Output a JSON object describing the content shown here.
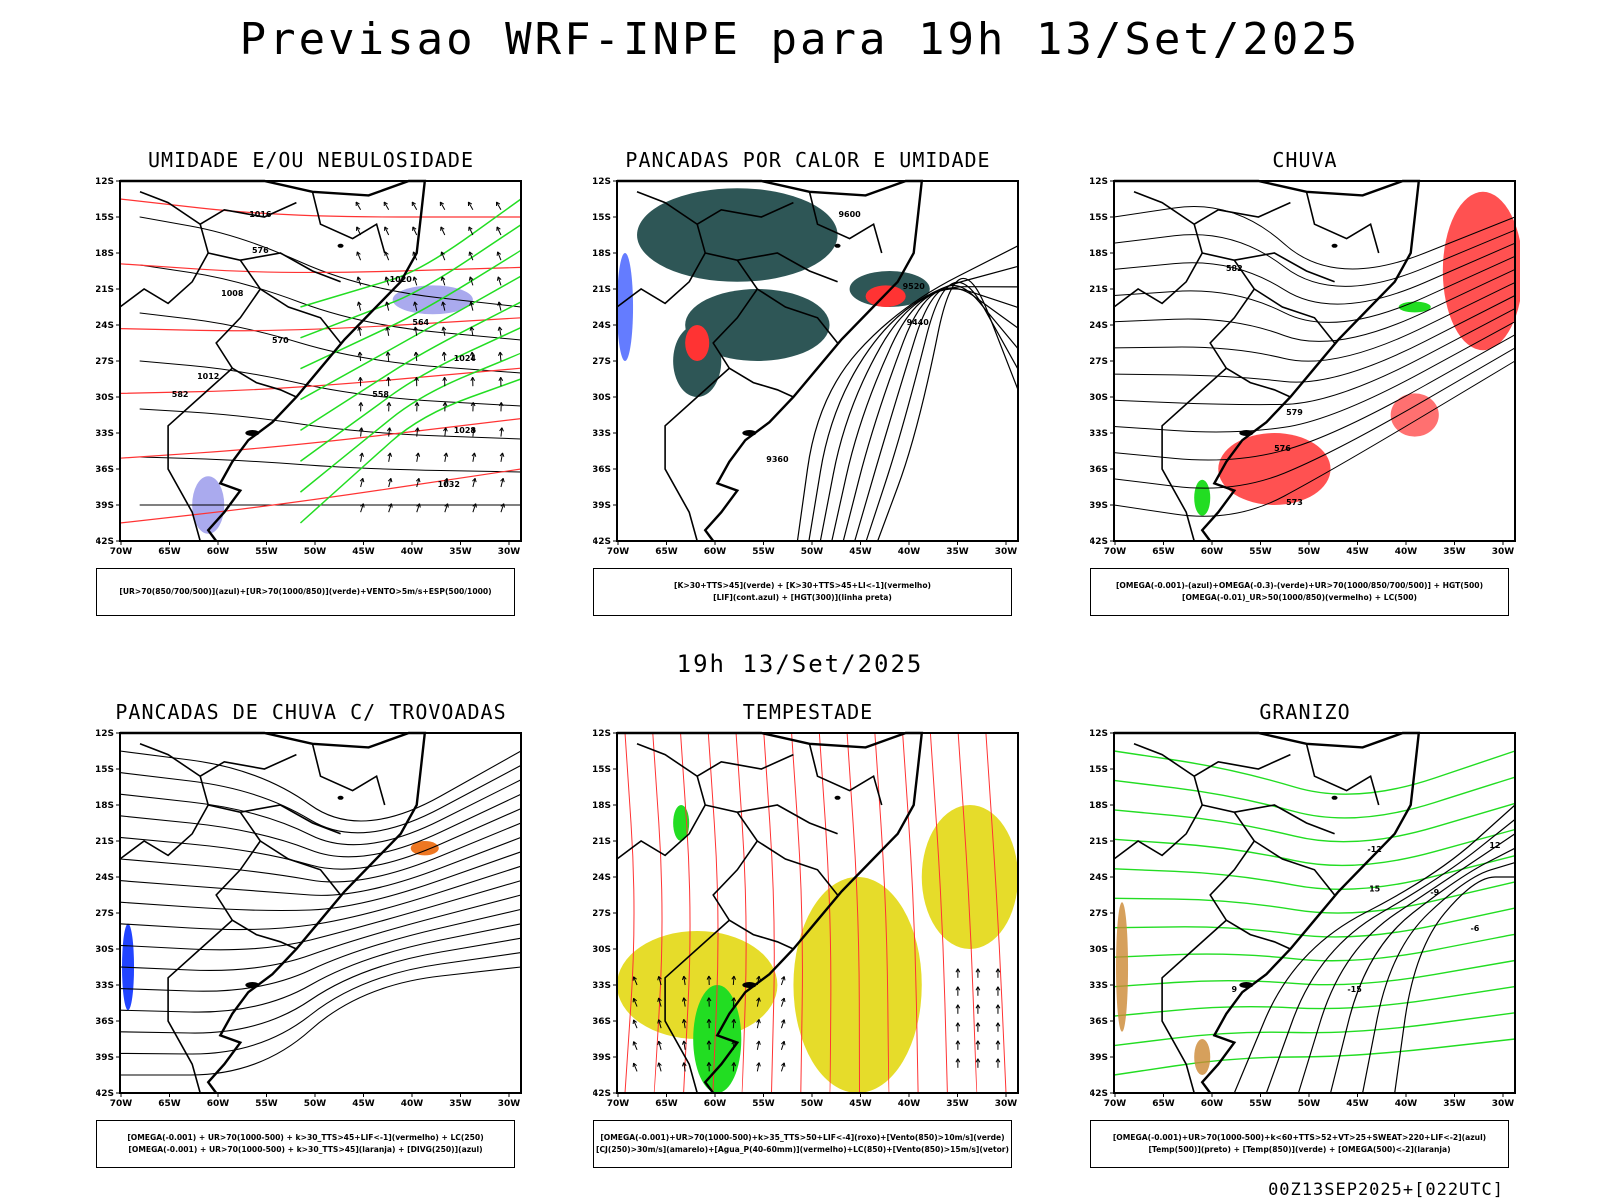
{
  "header": {
    "title": "Previsao WRF-INPE  para 19h 13/Set/2025"
  },
  "middle": {
    "title": "19h 13/Set/2025"
  },
  "footer": {
    "stamp": "00Z13SEP2025+[022UTC]"
  },
  "axes": {
    "lat_labels": [
      "12S",
      "15S",
      "18S",
      "21S",
      "24S",
      "27S",
      "30S",
      "33S",
      "36S",
      "39S",
      "42S"
    ],
    "lon_labels": [
      "70W",
      "65W",
      "60W",
      "55W",
      "50W",
      "45W",
      "40W",
      "35W",
      "30W"
    ]
  },
  "colors": {
    "red": "#ff3333",
    "green": "#22dd22",
    "blue": "#2244ff",
    "lavender": "#aaaaee",
    "teal": "#2e5656",
    "yellow": "#e6dc2a",
    "orange": "#ee7722",
    "olive": "#cc8833"
  },
  "panels": [
    {
      "id": "umidade",
      "title": "UMIDADE E/OU NEBULOSIDADE",
      "legend": [
        "[UR>70(850/700/500)](azul)+[UR>70(1000/850)](verde)+VENTO>5m/s+ESP(500/1000)"
      ],
      "contour_labels": [
        "1008",
        "1012",
        "1016",
        "1020",
        "1024",
        "1028",
        "1032",
        "576",
        "582",
        "564",
        "570",
        "558"
      ]
    },
    {
      "id": "pancadas-calor",
      "title": "PANCADAS POR CALOR E UMIDADE",
      "legend": [
        "[K>30+TTS>45](verde) + [K>30+TTS>45+LI<-1](vermelho)",
        "[LIF](cont.azul) + [HGT(300)](linha preta)"
      ],
      "contour_labels": [
        "9600",
        "9520",
        "9440",
        "9360"
      ]
    },
    {
      "id": "chuva",
      "title": "CHUVA",
      "legend": [
        "[OMEGA(-0.001)-(azul)+OMEGA(-0.3)-(verde)+UR>70(1000/850/700/500)] + HGT(500)",
        "[OMEGA(-0.01)_UR>50(1000/850)(vermelho) + LC(500)"
      ],
      "contour_labels": [
        "582",
        "579",
        "576",
        "573"
      ]
    },
    {
      "id": "trovoadas",
      "title": "PANCADAS DE CHUVA C/ TROVOADAS",
      "legend": [
        "[OMEGA(-0.001) + UR>70(1000-500) + k>30_TTS>45+LIF<-1](vermelho) + LC(250)",
        "[OMEGA(-0.001) + UR>70(1000-500) + k>30_TTS>45](laranja) + [DIVG(250)](azul)"
      ],
      "contour_labels": []
    },
    {
      "id": "tempestade",
      "title": "TEMPESTADE",
      "legend": [
        "[OMEGA(-0.001)+UR>70(1000-500)+k>35_TTS>50+LIF<-4](roxo)+[Vento(850)>10m/s](verde)",
        "[CJ(250)>30m/s](amarelo)+[Agua_P(40-60mm)](vermelho)+LC(850)+[Vento(850)>15m/s](vetor)"
      ],
      "contour_labels": []
    },
    {
      "id": "granizo",
      "title": "GRANIZO",
      "legend": [
        "[OMEGA(-0.001)+UR>70(1000-500)+k<60+TTS>52+VT>25+SWEAT>220+LIF<-2](azul)",
        "[Temp(500)](preto) + [Temp(850)](verde) + [OMEGA(500)<-2](laranja)"
      ],
      "contour_labels": [
        "-12",
        "-15",
        "-9",
        "-6",
        "12",
        "15",
        "9"
      ]
    }
  ]
}
